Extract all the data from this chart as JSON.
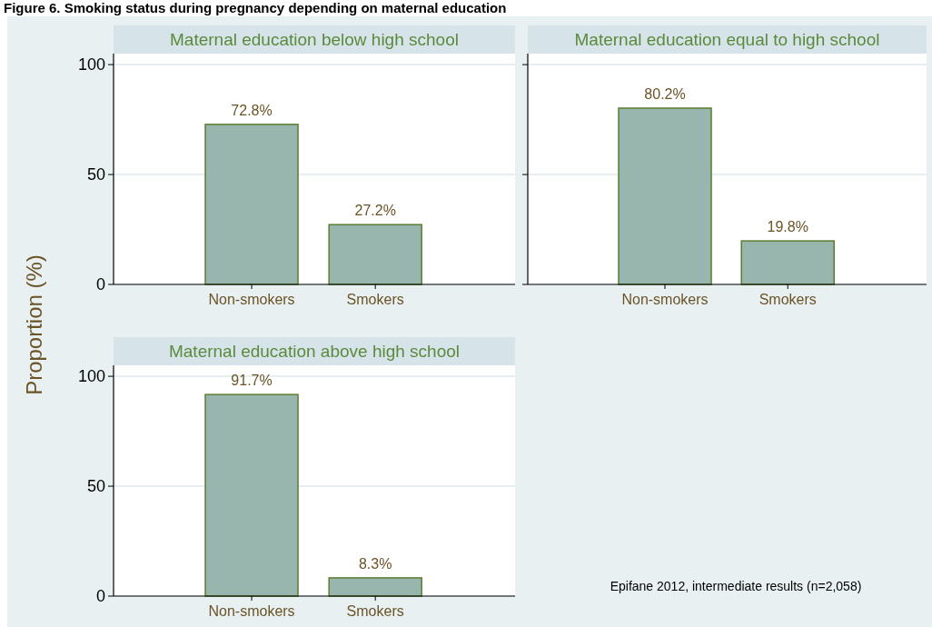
{
  "chart_data": [
    {
      "type": "bar",
      "title": "Maternal education below high school",
      "ylabel": "Proportion (%)",
      "categories": [
        "Non-smokers",
        "Smokers"
      ],
      "values": [
        72.8,
        27.2
      ],
      "value_labels": [
        "72.8%",
        "27.2%"
      ],
      "color": "#98b5ae",
      "ylim": [
        0,
        105
      ],
      "yticks": [
        0,
        50,
        100
      ],
      "grid": "y"
    },
    {
      "type": "bar",
      "title": "Maternal education equal to high school",
      "categories": [
        "Non-smokers",
        "Smokers"
      ],
      "values": [
        80.2,
        19.8
      ],
      "value_labels": [
        "80.2%",
        "19.8%"
      ],
      "color": "#98b5ae",
      "ylim": [
        0,
        105
      ],
      "yticks": [
        0,
        50,
        100
      ],
      "grid": "y",
      "tick_labels": "x"
    },
    {
      "type": "bar",
      "title": "Maternal education above high school",
      "categories": [
        "Non-smokers",
        "Smokers"
      ],
      "values": [
        91.7,
        8.3
      ],
      "value_labels": [
        "91.7%",
        "8.3%"
      ],
      "color": "#98b5ae",
      "ylim": [
        0,
        105
      ],
      "yticks": [
        0,
        50,
        100
      ],
      "grid": "y"
    },
    {
      "type": "other",
      "title": "Figure 6. Smoking status during pregnancy depending on maternal education",
      "annotations": [
        "Epifane 2012, intermediate results (n=2,058)"
      ]
    }
  ]
}
